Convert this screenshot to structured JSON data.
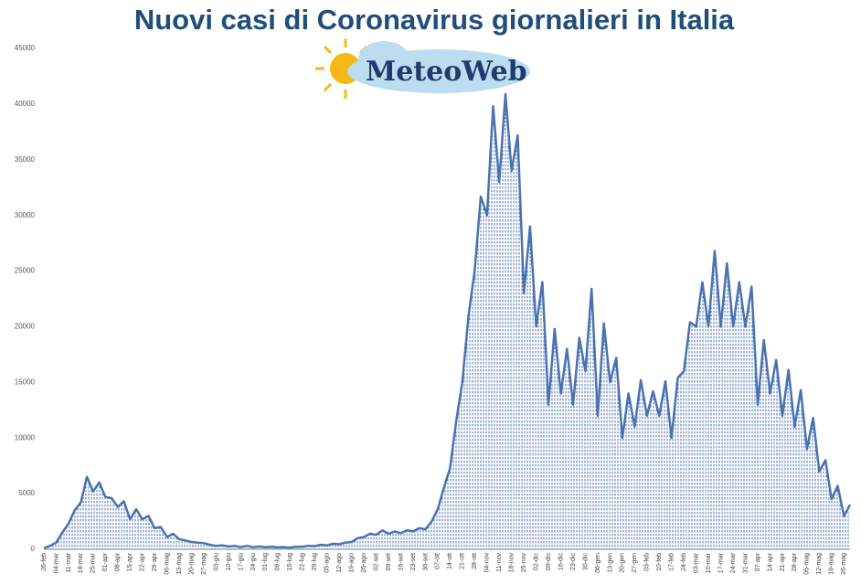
{
  "logo": "MeteoWeb",
  "chart_data": {
    "type": "area",
    "title": "Nuovi casi di Coronavirus giornalieri in Italia",
    "color": "#4a72b0",
    "categories": [
      "26-feb",
      null,
      "04-mar",
      null,
      "11-mar",
      null,
      "18-mar",
      null,
      "25-mar",
      null,
      "01-apr",
      null,
      "08-apr",
      null,
      "15-apr",
      null,
      "22-apr",
      null,
      "29-apr",
      null,
      "06-mag",
      null,
      "13-mag",
      null,
      "20-mag",
      null,
      "27-mag",
      null,
      "03-giu",
      null,
      "10-giu",
      null,
      "17-giu",
      null,
      "24-giu",
      null,
      "01-lug",
      null,
      "08-lug",
      null,
      "15-lug",
      null,
      "22-lug",
      null,
      "29-lug",
      null,
      "05-ago",
      null,
      "12-ago",
      null,
      "19-ago",
      null,
      "26-ago",
      null,
      "02-set",
      null,
      "09-set",
      null,
      "16-set",
      null,
      "23-set",
      null,
      "30-set",
      null,
      "07-ott",
      null,
      "14-ott",
      null,
      "21-ott",
      null,
      "28-ott",
      null,
      "04-nov",
      null,
      "11-nov",
      null,
      "18-nov",
      null,
      "25-nov",
      null,
      "02-dic",
      null,
      "09-dic",
      null,
      "16-dic",
      null,
      "23-dic",
      null,
      "30-dic",
      null,
      "06-gen",
      null,
      "13-gen",
      null,
      "20-gen",
      null,
      "27-gen",
      null,
      "03-feb",
      null,
      "10-feb",
      null,
      "17-feb",
      null,
      "24-feb",
      null,
      "03-mar",
      null,
      "10-mar",
      null,
      "17-mar",
      null,
      "24-mar",
      null,
      "31-mar",
      null,
      "07-apr",
      null,
      "14-apr",
      null,
      "21-apr",
      null,
      "28-apr",
      null,
      "05-mag",
      null,
      "12-mag",
      null,
      "19-mag",
      null,
      "26-mag",
      null
    ],
    "values": [
      100,
      300,
      600,
      1500,
      2300,
      3500,
      4200,
      6500,
      5200,
      6000,
      4700,
      4600,
      3800,
      4300,
      2700,
      3600,
      2700,
      3000,
      1900,
      2000,
      1100,
      1400,
      900,
      800,
      650,
      600,
      550,
      400,
      300,
      350,
      250,
      300,
      200,
      300,
      180,
      250,
      180,
      220,
      170,
      200,
      160,
      230,
      230,
      300,
      280,
      400,
      350,
      500,
      450,
      600,
      650,
      1000,
      1100,
      1400,
      1300,
      1700,
      1400,
      1600,
      1450,
      1700,
      1600,
      1900,
      1800,
      2500,
      3600,
      5500,
      7300,
      11500,
      15000,
      21000,
      25000,
      31700,
      30000,
      39800,
      33000,
      40900,
      34000,
      37200,
      23000,
      29000,
      20000,
      24000,
      13000,
      19800,
      14000,
      18000,
      13000,
      19000,
      16000,
      23400,
      12000,
      20300,
      15000,
      17200,
      10000,
      14000,
      11000,
      15200,
      12000,
      14200,
      12000,
      15100,
      10000,
      15400,
      16000,
      20400,
      20000,
      24000,
      20000,
      26800,
      20000,
      25700,
      20000,
      24000,
      20000,
      23600,
      13000,
      18800,
      14000,
      17000,
      12000,
      16100,
      11000,
      14300,
      9000,
      11800,
      7000,
      8000,
      4500,
      5700,
      3000,
      4000
    ],
    "ylim": [
      0,
      45000
    ],
    "yticks": [
      0,
      5000,
      10000,
      15000,
      20000,
      25000,
      30000,
      35000,
      40000,
      45000
    ]
  }
}
